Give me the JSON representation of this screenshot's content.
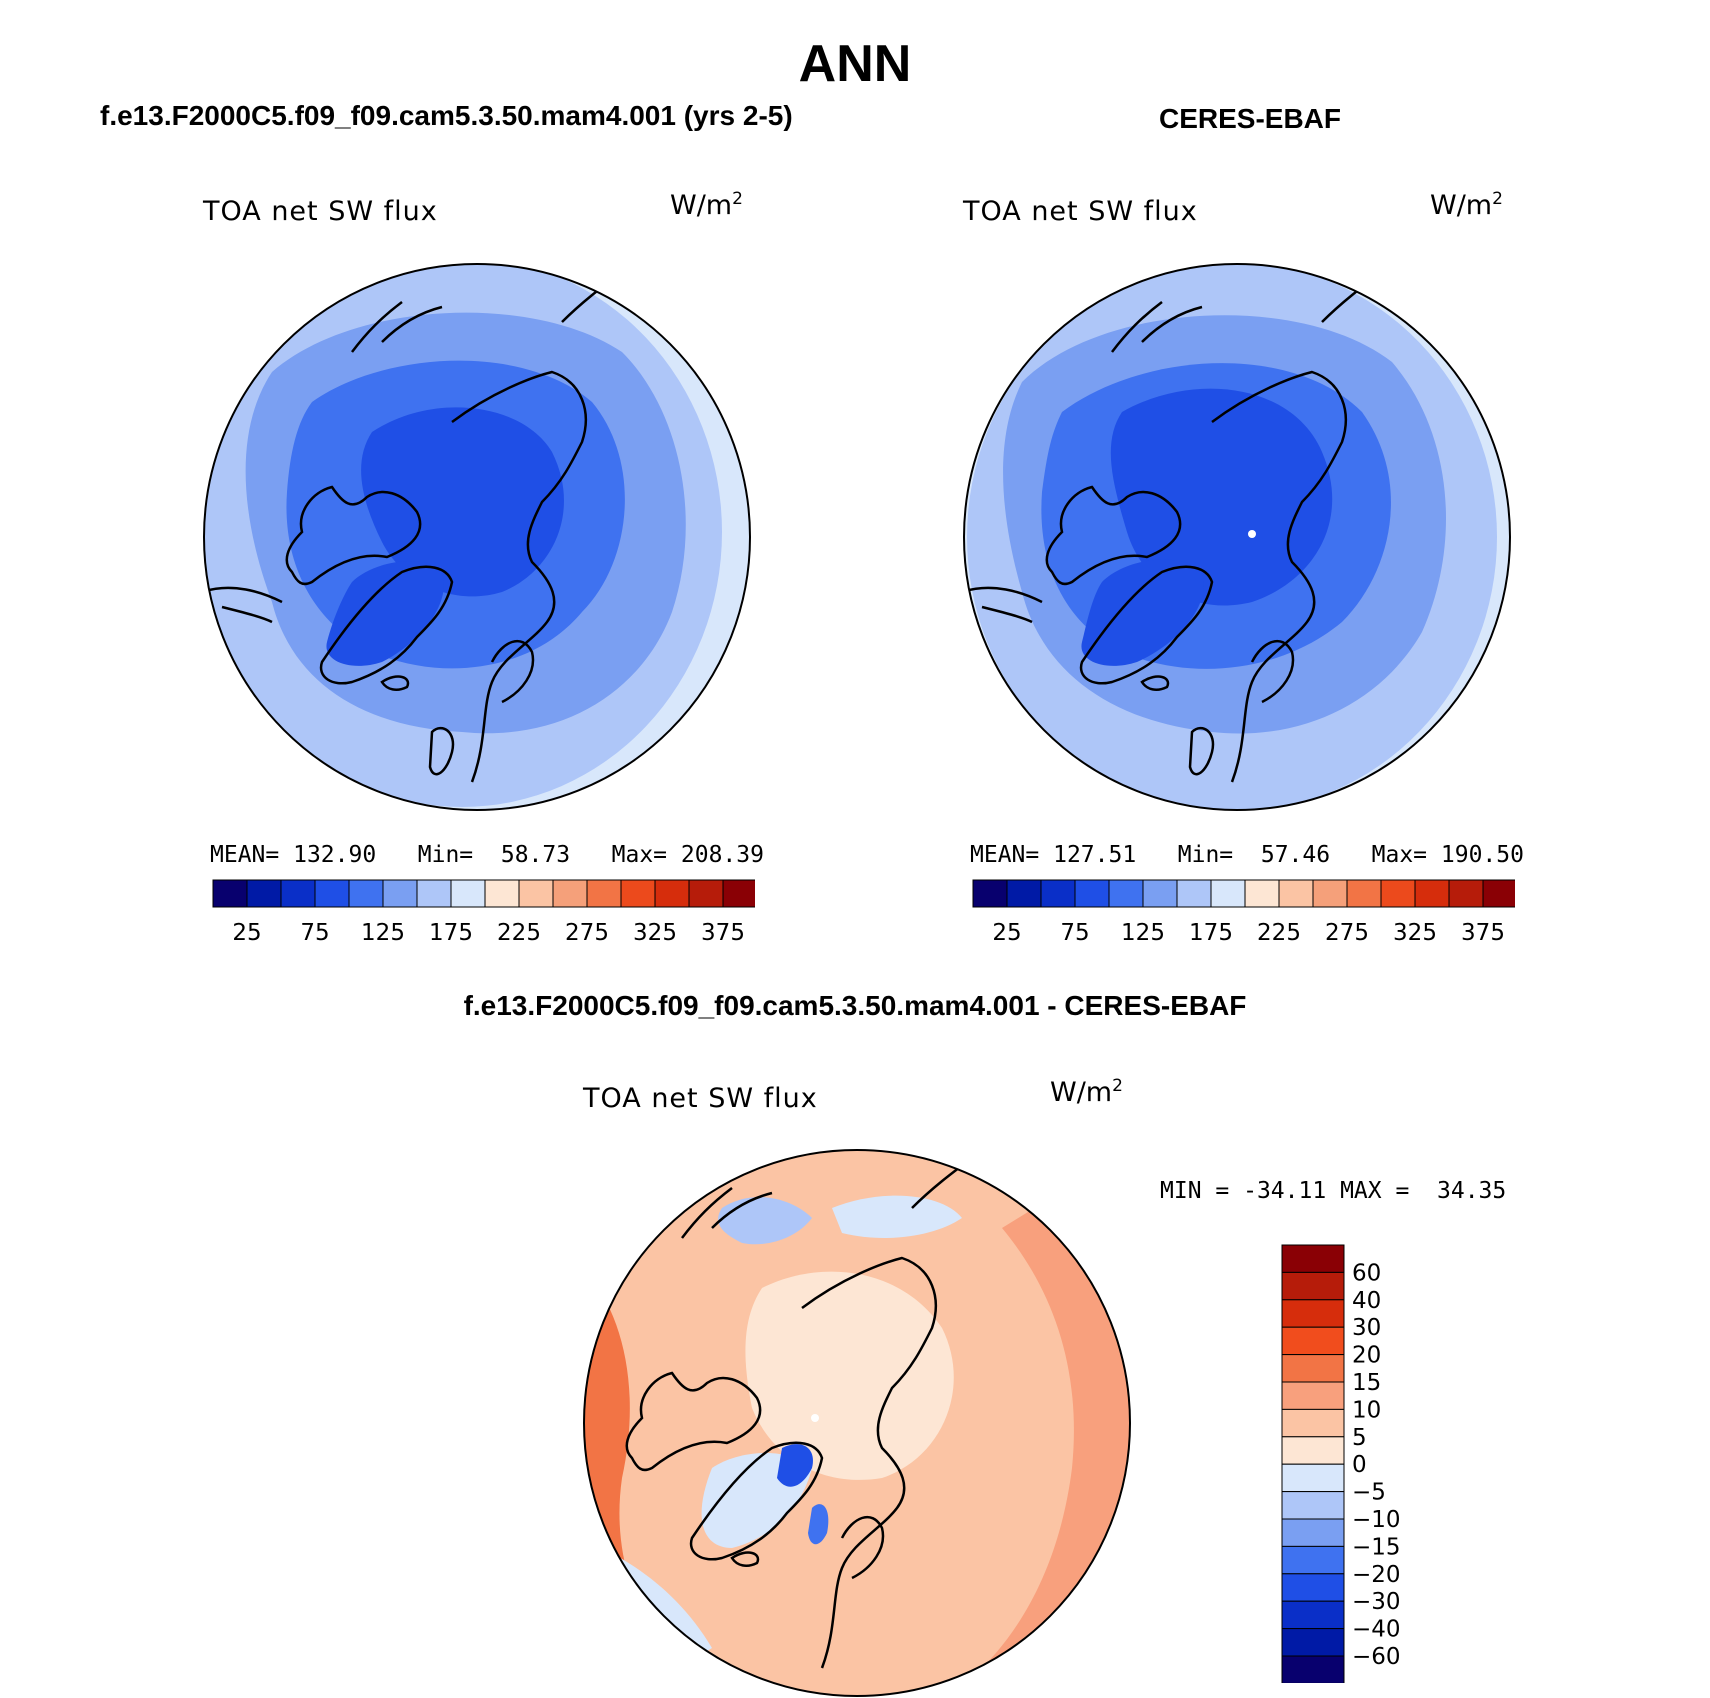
{
  "title": "ANN",
  "left_panel": {
    "run_title": "f.e13.F2000C5.f09_f09.cam5.3.50.mam4.001 (yrs 2-5)",
    "variable": "TOA net SW flux",
    "units": "W/m",
    "units_exp": "2",
    "stats": {
      "mean_label": "MEAN=",
      "mean": "132.90",
      "min_label": "Min=",
      "min": "58.73",
      "max_label": "Max=",
      "max": "208.39"
    }
  },
  "right_panel": {
    "run_title": "CERES-EBAF",
    "variable": "TOA net SW flux",
    "units": "W/m",
    "units_exp": "2",
    "stats": {
      "mean_label": "MEAN=",
      "mean": "127.51",
      "min_label": "Min=",
      "min": "57.46",
      "max_label": "Max=",
      "max": "190.50"
    }
  },
  "diff_panel": {
    "run_title": "f.e13.F2000C5.f09_f09.cam5.3.50.mam4.001 - CERES-EBAF",
    "variable": "TOA net SW flux",
    "units": "W/m",
    "units_exp": "2",
    "stats": {
      "min_label": "MIN =",
      "min": "-34.11",
      "max_label": "MAX =",
      "max": "34.35"
    }
  },
  "colorbar_abs": {
    "colors": [
      "#08006e",
      "#001aa6",
      "#0a2fc8",
      "#1f4fe6",
      "#3f72f0",
      "#7a9ff2",
      "#aec6f8",
      "#d8e7fb",
      "#fde6d4",
      "#fbc4a4",
      "#f5a07a",
      "#f27445",
      "#ec4a1c",
      "#d62d0c",
      "#b61c0a",
      "#8a0005"
    ],
    "labels": [
      "25",
      "75",
      "125",
      "175",
      "225",
      "275",
      "325",
      "375"
    ]
  },
  "colorbar_diff": {
    "colors": [
      "#8a0005",
      "#b61c0a",
      "#d62d0c",
      "#f14d1d",
      "#f27445",
      "#f8a07d",
      "#fbc4a4",
      "#fde6d4",
      "#d8e7fb",
      "#aec6f8",
      "#7a9ff2",
      "#3f72f0",
      "#1f4fe6",
      "#0a2fc8",
      "#001aa6",
      "#08006e"
    ],
    "labels": [
      "60",
      "40",
      "30",
      "20",
      "15",
      "10",
      "5",
      "0",
      "−5",
      "−10",
      "−15",
      "−20",
      "−30",
      "−40",
      "−60"
    ]
  }
}
